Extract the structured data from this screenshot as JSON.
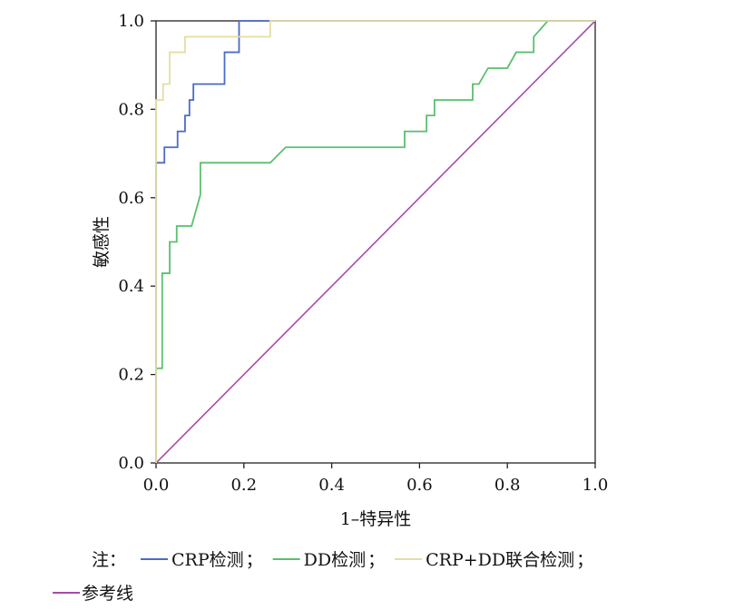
{
  "chart_data": {
    "type": "line",
    "xlabel": "1–特异性",
    "ylabel": "敏感性",
    "xlim": [
      0,
      1
    ],
    "ylim": [
      0,
      1
    ],
    "x_ticks": [
      "0.0",
      "0.2",
      "0.4",
      "0.6",
      "0.8",
      "1.0"
    ],
    "y_ticks": [
      "0.0",
      "0.2",
      "0.4",
      "0.6",
      "0.8",
      "1.0"
    ],
    "grid": false,
    "series": [
      {
        "name": "CRP检测",
        "color": "#4a6cc4",
        "points": [
          [
            0,
            0
          ],
          [
            0,
            0.679
          ],
          [
            0.019,
            0.679
          ],
          [
            0.019,
            0.714
          ],
          [
            0.049,
            0.714
          ],
          [
            0.049,
            0.75
          ],
          [
            0.066,
            0.75
          ],
          [
            0.066,
            0.786
          ],
          [
            0.076,
            0.786
          ],
          [
            0.076,
            0.821
          ],
          [
            0.085,
            0.821
          ],
          [
            0.085,
            0.857
          ],
          [
            0.156,
            0.857
          ],
          [
            0.156,
            0.929
          ],
          [
            0.189,
            0.929
          ],
          [
            0.189,
            1.0
          ],
          [
            0.26,
            1.0
          ],
          [
            1.0,
            1.0
          ]
        ]
      },
      {
        "name": "DD检测",
        "color": "#5abf6e",
        "points": [
          [
            0,
            0
          ],
          [
            0,
            0.214
          ],
          [
            0.014,
            0.214
          ],
          [
            0.014,
            0.429
          ],
          [
            0.031,
            0.429
          ],
          [
            0.031,
            0.5
          ],
          [
            0.047,
            0.5
          ],
          [
            0.047,
            0.536
          ],
          [
            0.081,
            0.536
          ],
          [
            0.101,
            0.607
          ],
          [
            0.101,
            0.679
          ],
          [
            0.26,
            0.679
          ],
          [
            0.295,
            0.714
          ],
          [
            0.566,
            0.714
          ],
          [
            0.566,
            0.75
          ],
          [
            0.616,
            0.75
          ],
          [
            0.616,
            0.786
          ],
          [
            0.634,
            0.786
          ],
          [
            0.634,
            0.821
          ],
          [
            0.721,
            0.821
          ],
          [
            0.721,
            0.857
          ],
          [
            0.735,
            0.857
          ],
          [
            0.756,
            0.893
          ],
          [
            0.8,
            0.893
          ],
          [
            0.82,
            0.929
          ],
          [
            0.86,
            0.929
          ],
          [
            0.86,
            0.964
          ],
          [
            0.892,
            1.0
          ],
          [
            1.0,
            1.0
          ]
        ]
      },
      {
        "name": "CRP+DD联合检测",
        "color": "#e6dca4",
        "points": [
          [
            0,
            0
          ],
          [
            0,
            0.821
          ],
          [
            0.016,
            0.821
          ],
          [
            0.016,
            0.857
          ],
          [
            0.031,
            0.857
          ],
          [
            0.031,
            0.929
          ],
          [
            0.066,
            0.929
          ],
          [
            0.066,
            0.964
          ],
          [
            0.26,
            0.964
          ],
          [
            0.26,
            1.0
          ],
          [
            1.0,
            1.0
          ]
        ]
      },
      {
        "name": "参考线",
        "color": "#a84ba8",
        "points": [
          [
            0,
            0
          ],
          [
            1,
            1
          ]
        ]
      }
    ],
    "legend": {
      "prefix": "注：",
      "separator": "；",
      "placement": "bottom"
    }
  }
}
